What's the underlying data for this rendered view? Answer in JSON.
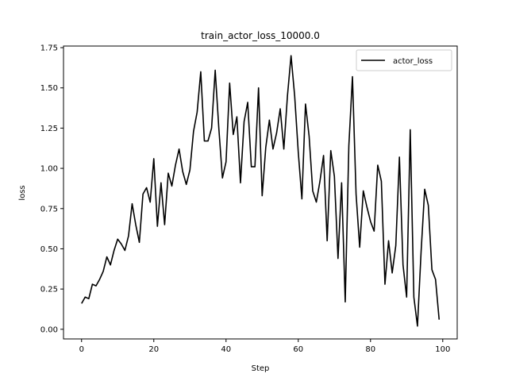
{
  "chart_data": {
    "type": "line",
    "title": "train_actor_loss_10000.0",
    "xlabel": "Step",
    "ylabel": "loss",
    "xlim": [
      -5,
      104
    ],
    "ylim": [
      -0.06,
      1.76
    ],
    "xticks": [
      0,
      20,
      40,
      60,
      80,
      100
    ],
    "yticks": [
      0.0,
      0.25,
      0.5,
      0.75,
      1.0,
      1.25,
      1.5,
      1.75
    ],
    "xtick_labels": [
      "0",
      "20",
      "40",
      "60",
      "80",
      "100"
    ],
    "ytick_labels": [
      "0.00",
      "0.25",
      "0.50",
      "0.75",
      "1.00",
      "1.25",
      "1.50",
      "1.75"
    ],
    "grid": false,
    "legend": {
      "position": "top-right",
      "entries": [
        "actor_loss"
      ]
    },
    "series": [
      {
        "name": "actor_loss",
        "color": "#000000",
        "x": [
          0,
          1,
          2,
          3,
          4,
          5,
          6,
          7,
          8,
          9,
          10,
          11,
          12,
          13,
          14,
          15,
          16,
          17,
          18,
          19,
          20,
          21,
          22,
          23,
          24,
          25,
          26,
          27,
          28,
          29,
          30,
          31,
          32,
          33,
          34,
          35,
          36,
          37,
          38,
          39,
          40,
          41,
          42,
          43,
          44,
          45,
          46,
          47,
          48,
          49,
          50,
          51,
          52,
          53,
          54,
          55,
          56,
          57,
          58,
          59,
          60,
          61,
          62,
          63,
          64,
          65,
          66,
          67,
          68,
          69,
          70,
          71,
          72,
          73,
          74,
          75,
          76,
          77,
          78,
          79,
          80,
          81,
          82,
          83,
          84,
          85,
          86,
          87,
          88,
          89,
          90,
          91,
          92,
          93,
          94,
          95,
          96,
          97,
          98,
          99
        ],
        "y": [
          0.16,
          0.2,
          0.19,
          0.28,
          0.27,
          0.31,
          0.36,
          0.45,
          0.4,
          0.49,
          0.56,
          0.53,
          0.49,
          0.58,
          0.78,
          0.65,
          0.54,
          0.84,
          0.88,
          0.79,
          1.06,
          0.64,
          0.91,
          0.65,
          0.97,
          0.89,
          1.02,
          1.12,
          0.98,
          0.9,
          0.99,
          1.23,
          1.35,
          1.6,
          1.17,
          1.17,
          1.25,
          1.61,
          1.25,
          0.94,
          1.04,
          1.53,
          1.21,
          1.32,
          0.91,
          1.29,
          1.41,
          1.01,
          1.01,
          1.5,
          0.83,
          1.13,
          1.3,
          1.12,
          1.22,
          1.37,
          1.12,
          1.45,
          1.7,
          1.45,
          1.1,
          0.81,
          1.4,
          1.2,
          0.86,
          0.79,
          0.92,
          1.08,
          0.55,
          1.11,
          0.95,
          0.44,
          0.91,
          0.17,
          1.14,
          1.57,
          0.84,
          0.51,
          0.86,
          0.76,
          0.67,
          0.61,
          1.02,
          0.92,
          0.28,
          0.55,
          0.35,
          0.52,
          1.07,
          0.4,
          0.2,
          1.24,
          0.2,
          0.02,
          0.48,
          0.87,
          0.77,
          0.37,
          0.31,
          0.06
        ]
      }
    ]
  }
}
